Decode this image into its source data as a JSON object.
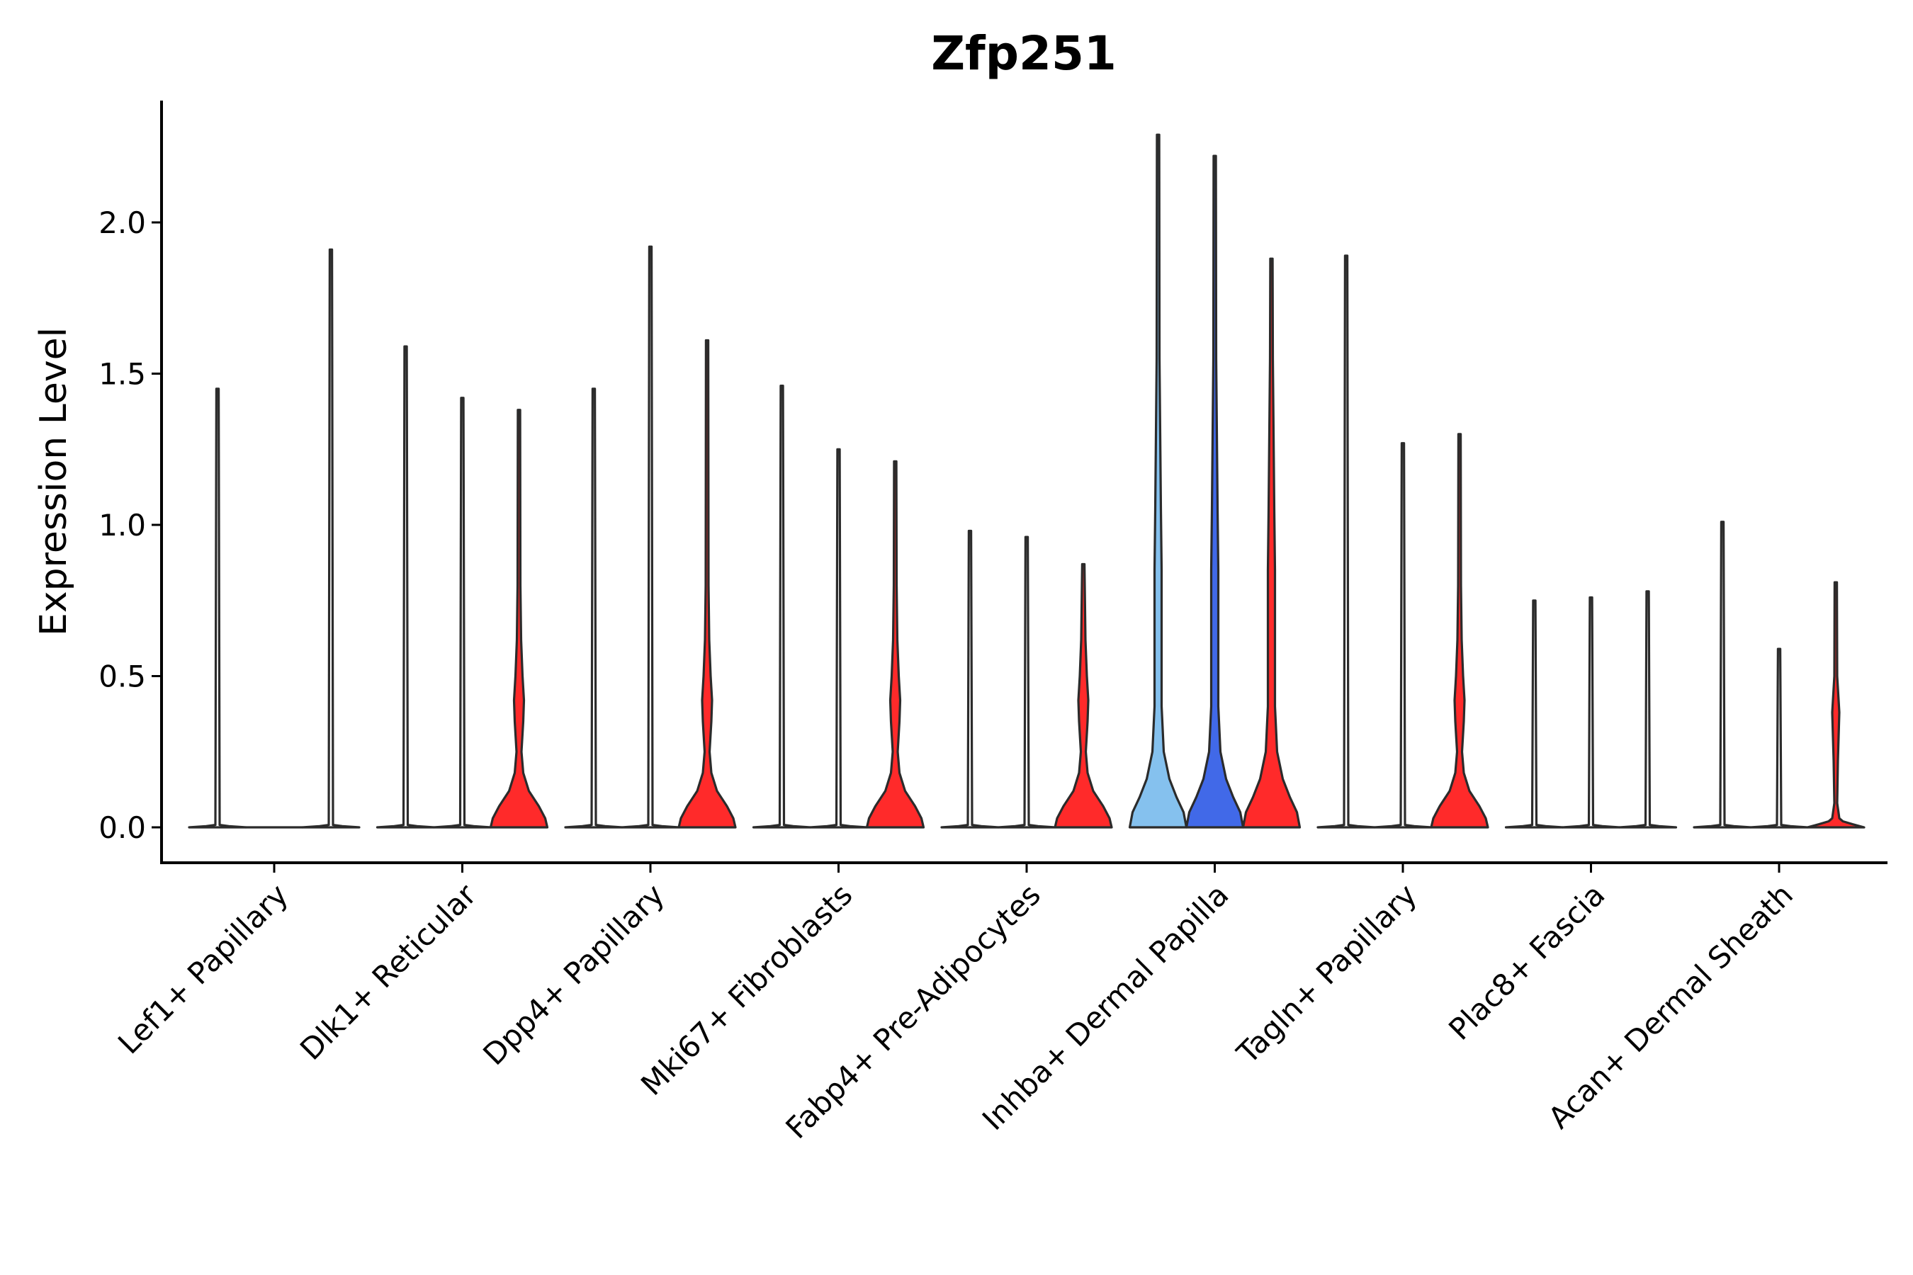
{
  "chart_data": {
    "type": "violin",
    "title": "Zfp251",
    "xlabel": "",
    "ylabel": "Expression Level",
    "ylim": [
      -0.12,
      2.4
    ],
    "yticks": [
      0.0,
      0.5,
      1.0,
      1.5,
      2.0
    ],
    "ytick_labels": [
      "0.0",
      "0.5",
      "1.0",
      "1.5",
      "2.0"
    ],
    "grid": false,
    "legend": "none",
    "colors": {
      "zero": "#ffffff",
      "light_blue": "#85c1ee",
      "blue": "#4169e8",
      "red": "#ff2a2a"
    },
    "categories": [
      "Lef1+ Papillary",
      "Dlk1+ Reticular",
      "Dpp4+ Papillary",
      "Mki67+ Fibroblasts",
      "Fabp4+ Pre-Adipocytes",
      "Inhba+ Dermal Papilla",
      "Tagln+ Papillary",
      "Plac8+ Fascia",
      "Acan+ Dermal Sheath"
    ],
    "groups": [
      {
        "category": "Lef1+ Papillary",
        "violins": [
          {
            "max": 1.45,
            "shape": "flat",
            "fill": "zero"
          },
          {
            "max": 0.0,
            "shape": "flat",
            "fill": "zero"
          },
          {
            "max": 1.91,
            "shape": "flat",
            "fill": "zero"
          }
        ]
      },
      {
        "category": "Dlk1+ Reticular",
        "violins": [
          {
            "max": 1.59,
            "shape": "flat",
            "fill": "zero"
          },
          {
            "max": 1.42,
            "shape": "flat",
            "fill": "zero"
          },
          {
            "max": 1.38,
            "shape": "low",
            "fill": "red"
          }
        ]
      },
      {
        "category": "Dpp4+ Papillary",
        "violins": [
          {
            "max": 1.45,
            "shape": "flat",
            "fill": "zero"
          },
          {
            "max": 1.92,
            "shape": "flat",
            "fill": "zero"
          },
          {
            "max": 1.61,
            "shape": "low",
            "fill": "red"
          }
        ]
      },
      {
        "category": "Mki67+ Fibroblasts",
        "violins": [
          {
            "max": 1.46,
            "shape": "flat",
            "fill": "zero"
          },
          {
            "max": 1.25,
            "shape": "flat",
            "fill": "zero"
          },
          {
            "max": 1.21,
            "shape": "low",
            "fill": "red"
          }
        ]
      },
      {
        "category": "Fabp4+ Pre-Adipocytes",
        "violins": [
          {
            "max": 0.98,
            "shape": "flat",
            "fill": "zero"
          },
          {
            "max": 0.96,
            "shape": "flat",
            "fill": "zero"
          },
          {
            "max": 0.87,
            "shape": "low",
            "fill": "red"
          }
        ]
      },
      {
        "category": "Inhba+ Dermal Papilla",
        "violins": [
          {
            "max": 2.29,
            "shape": "wide",
            "fill": "light_blue"
          },
          {
            "max": 2.22,
            "shape": "wide",
            "fill": "blue"
          },
          {
            "max": 1.88,
            "shape": "wide",
            "fill": "red"
          }
        ]
      },
      {
        "category": "Tagln+ Papillary",
        "violins": [
          {
            "max": 1.89,
            "shape": "flat",
            "fill": "zero"
          },
          {
            "max": 1.27,
            "shape": "flat",
            "fill": "zero"
          },
          {
            "max": 1.3,
            "shape": "low",
            "fill": "red"
          }
        ]
      },
      {
        "category": "Plac8+ Fascia",
        "violins": [
          {
            "max": 0.75,
            "shape": "flat",
            "fill": "zero"
          },
          {
            "max": 0.76,
            "shape": "flat",
            "fill": "zero"
          },
          {
            "max": 0.78,
            "shape": "flat",
            "fill": "zero"
          }
        ]
      },
      {
        "category": "Acan+ Dermal Sheath",
        "violins": [
          {
            "max": 1.01,
            "shape": "flat",
            "fill": "zero"
          },
          {
            "max": 0.59,
            "shape": "flat",
            "fill": "zero"
          },
          {
            "max": 0.81,
            "shape": "tiny",
            "fill": "red"
          }
        ]
      }
    ]
  }
}
